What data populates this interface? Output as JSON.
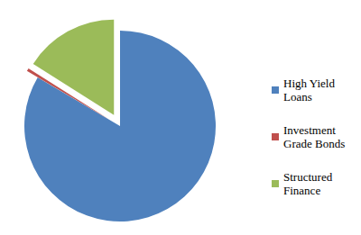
{
  "chart_data": {
    "type": "pie",
    "categories": [
      "High Yield Loans",
      "Investment Grade Bonds",
      "Structured Finance"
    ],
    "values": [
      83.5,
      0.5,
      16
    ],
    "colors": [
      "#4f81bd",
      "#c0504d",
      "#9bbb59"
    ],
    "legend": "right",
    "data_labels": false
  }
}
